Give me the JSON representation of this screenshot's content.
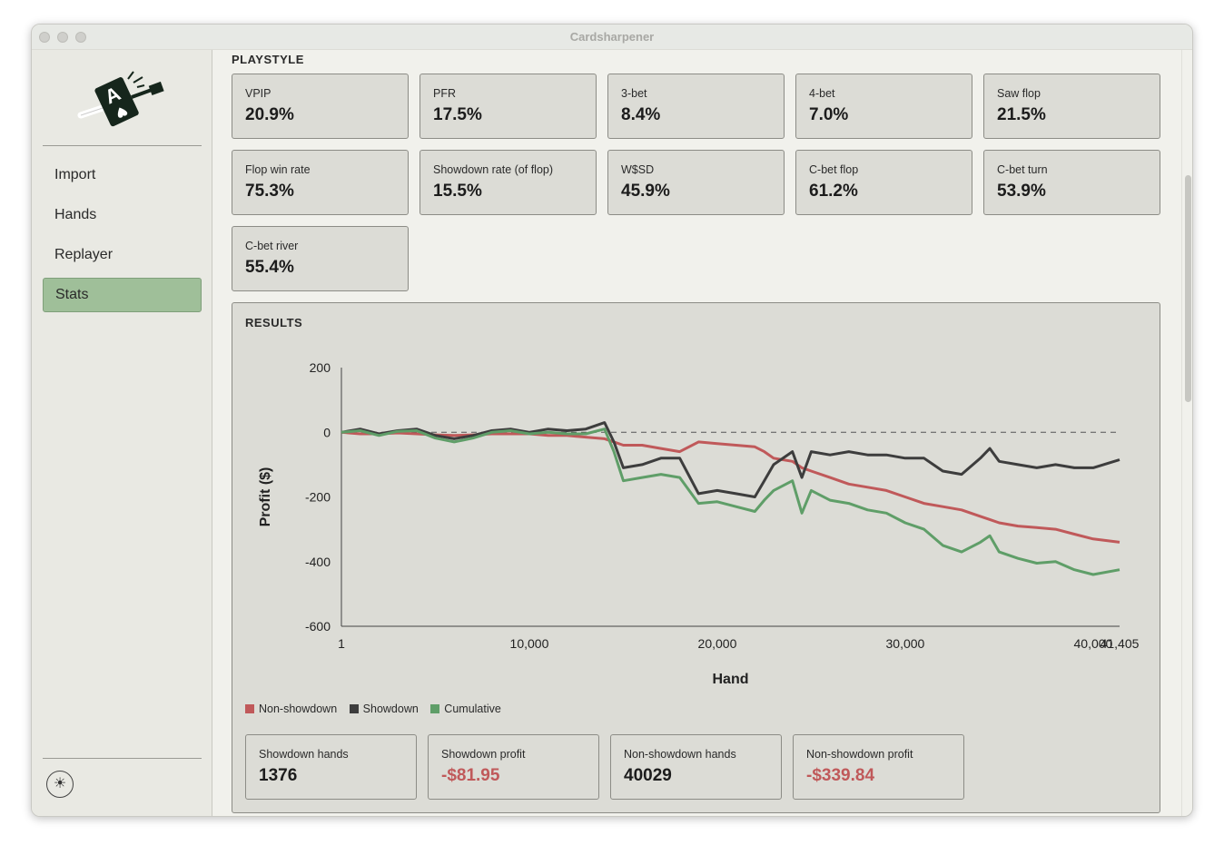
{
  "window": {
    "title": "Cardsharpener"
  },
  "sidebar": {
    "items": [
      {
        "label": "Import",
        "active": false
      },
      {
        "label": "Hands",
        "active": false
      },
      {
        "label": "Replayer",
        "active": false
      },
      {
        "label": "Stats",
        "active": true
      }
    ],
    "theme_icon": "sun-icon",
    "theme_glyph": "☀"
  },
  "playstyle": {
    "title": "PLAYSTYLE",
    "stats": [
      {
        "label": "VPIP",
        "value": "20.9%"
      },
      {
        "label": "PFR",
        "value": "17.5%"
      },
      {
        "label": "3-bet",
        "value": "8.4%"
      },
      {
        "label": "4-bet",
        "value": "7.0%"
      },
      {
        "label": "Saw flop",
        "value": "21.5%"
      },
      {
        "label": "Flop win rate",
        "value": "75.3%"
      },
      {
        "label": "Showdown rate (of flop)",
        "value": "15.5%"
      },
      {
        "label": "W$SD",
        "value": "45.9%"
      },
      {
        "label": "C-bet flop",
        "value": "61.2%"
      },
      {
        "label": "C-bet turn",
        "value": "53.9%"
      },
      {
        "label": "C-bet river",
        "value": "55.4%"
      }
    ]
  },
  "results": {
    "title": "RESULTS",
    "legend": [
      {
        "name": "Non-showdown",
        "color": "#c0595a"
      },
      {
        "name": "Showdown",
        "color": "#3d3d3d"
      },
      {
        "name": "Cumulative",
        "color": "#5f9e68"
      }
    ],
    "summary": [
      {
        "label": "Showdown hands",
        "value": "1376",
        "negative": false
      },
      {
        "label": "Showdown profit",
        "value": "-$81.95",
        "negative": true
      },
      {
        "label": "Non-showdown hands",
        "value": "40029",
        "negative": false
      },
      {
        "label": "Non-showdown profit",
        "value": "-$339.84",
        "negative": true
      }
    ]
  },
  "chart_data": {
    "type": "line",
    "xlabel": "Hand",
    "ylabel": "Profit ($)",
    "xlim": [
      1,
      41405
    ],
    "ylim": [
      -600,
      200
    ],
    "x_ticks": [
      1,
      10000,
      20000,
      30000,
      40000,
      41405
    ],
    "x_tick_labels": [
      "1",
      "10,000",
      "20,000",
      "30,000",
      "40,000",
      "41,405"
    ],
    "y_ticks": [
      200,
      0,
      -200,
      -400,
      -600
    ],
    "y_tick_labels": [
      "200",
      "0",
      "-200",
      "-400",
      "-600"
    ],
    "zero_line": "dashed",
    "x": [
      1,
      1000,
      2000,
      3000,
      4000,
      5000,
      6000,
      7000,
      8000,
      9000,
      10000,
      11000,
      12000,
      13000,
      14000,
      14500,
      15000,
      16000,
      17000,
      18000,
      19000,
      20000,
      21000,
      22000,
      22500,
      23000,
      24000,
      24500,
      25000,
      26000,
      27000,
      28000,
      29000,
      30000,
      31000,
      32000,
      33000,
      34000,
      34500,
      35000,
      36000,
      37000,
      38000,
      39000,
      40000,
      41405
    ],
    "series": [
      {
        "name": "Non-showdown",
        "color": "#c0595a",
        "values": [
          0,
          -5,
          -5,
          -2,
          -5,
          -8,
          -10,
          -8,
          -5,
          -5,
          -5,
          -10,
          -10,
          -15,
          -20,
          -30,
          -40,
          -40,
          -50,
          -60,
          -30,
          -35,
          -40,
          -45,
          -60,
          -80,
          -90,
          -110,
          -120,
          -140,
          -160,
          -170,
          -180,
          -200,
          -220,
          -230,
          -240,
          -260,
          -270,
          -280,
          -290,
          -295,
          -300,
          -315,
          -330,
          -340
        ]
      },
      {
        "name": "Showdown",
        "color": "#3d3d3d",
        "values": [
          0,
          10,
          -5,
          5,
          10,
          -10,
          -20,
          -10,
          5,
          10,
          0,
          10,
          5,
          10,
          30,
          -30,
          -110,
          -100,
          -80,
          -80,
          -190,
          -180,
          -190,
          -200,
          -150,
          -100,
          -60,
          -140,
          -60,
          -70,
          -60,
          -70,
          -70,
          -80,
          -80,
          -120,
          -130,
          -80,
          -50,
          -90,
          -100,
          -110,
          -100,
          -110,
          -110,
          -85
        ]
      },
      {
        "name": "Cumulative",
        "color": "#5f9e68",
        "values": [
          0,
          5,
          -10,
          3,
          5,
          -18,
          -30,
          -18,
          0,
          5,
          -5,
          0,
          -5,
          -5,
          10,
          -60,
          -150,
          -140,
          -130,
          -140,
          -220,
          -215,
          -230,
          -245,
          -210,
          -180,
          -150,
          -250,
          -180,
          -210,
          -220,
          -240,
          -250,
          -280,
          -300,
          -350,
          -370,
          -340,
          -320,
          -370,
          -390,
          -405,
          -400,
          -425,
          -440,
          -425
        ]
      }
    ]
  }
}
